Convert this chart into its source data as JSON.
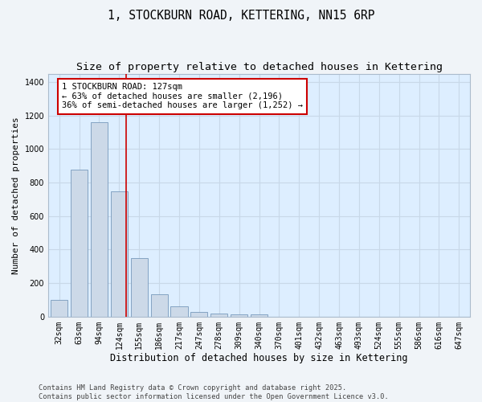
{
  "title": "1, STOCKBURN ROAD, KETTERING, NN15 6RP",
  "subtitle": "Size of property relative to detached houses in Kettering",
  "xlabel": "Distribution of detached houses by size in Kettering",
  "ylabel": "Number of detached properties",
  "categories": [
    "32sqm",
    "63sqm",
    "94sqm",
    "124sqm",
    "155sqm",
    "186sqm",
    "217sqm",
    "247sqm",
    "278sqm",
    "309sqm",
    "340sqm",
    "370sqm",
    "401sqm",
    "432sqm",
    "463sqm",
    "493sqm",
    "524sqm",
    "555sqm",
    "586sqm",
    "616sqm",
    "647sqm"
  ],
  "values": [
    100,
    875,
    1160,
    750,
    350,
    135,
    60,
    30,
    18,
    13,
    13,
    0,
    0,
    0,
    0,
    0,
    0,
    0,
    0,
    0,
    0
  ],
  "bar_color": "#ccd9e8",
  "bar_edge_color": "#7799bb",
  "red_line_index": 3,
  "annotation_text": "1 STOCKBURN ROAD: 127sqm\n← 63% of detached houses are smaller (2,196)\n36% of semi-detached houses are larger (1,252) →",
  "annotation_box_color": "#ffffff",
  "annotation_box_edge": "#cc0000",
  "ylim": [
    0,
    1450
  ],
  "yticks": [
    0,
    200,
    400,
    600,
    800,
    1000,
    1200,
    1400
  ],
  "grid_color": "#c8d8e8",
  "plot_bg_color": "#ddeeff",
  "fig_bg_color": "#f0f4f8",
  "footer": "Contains HM Land Registry data © Crown copyright and database right 2025.\nContains public sector information licensed under the Open Government Licence v3.0.",
  "title_fontsize": 10.5,
  "subtitle_fontsize": 9.5,
  "xlabel_fontsize": 8.5,
  "ylabel_fontsize": 8.0,
  "tick_fontsize": 7.0,
  "annotation_fontsize": 7.5,
  "footer_fontsize": 6.2
}
